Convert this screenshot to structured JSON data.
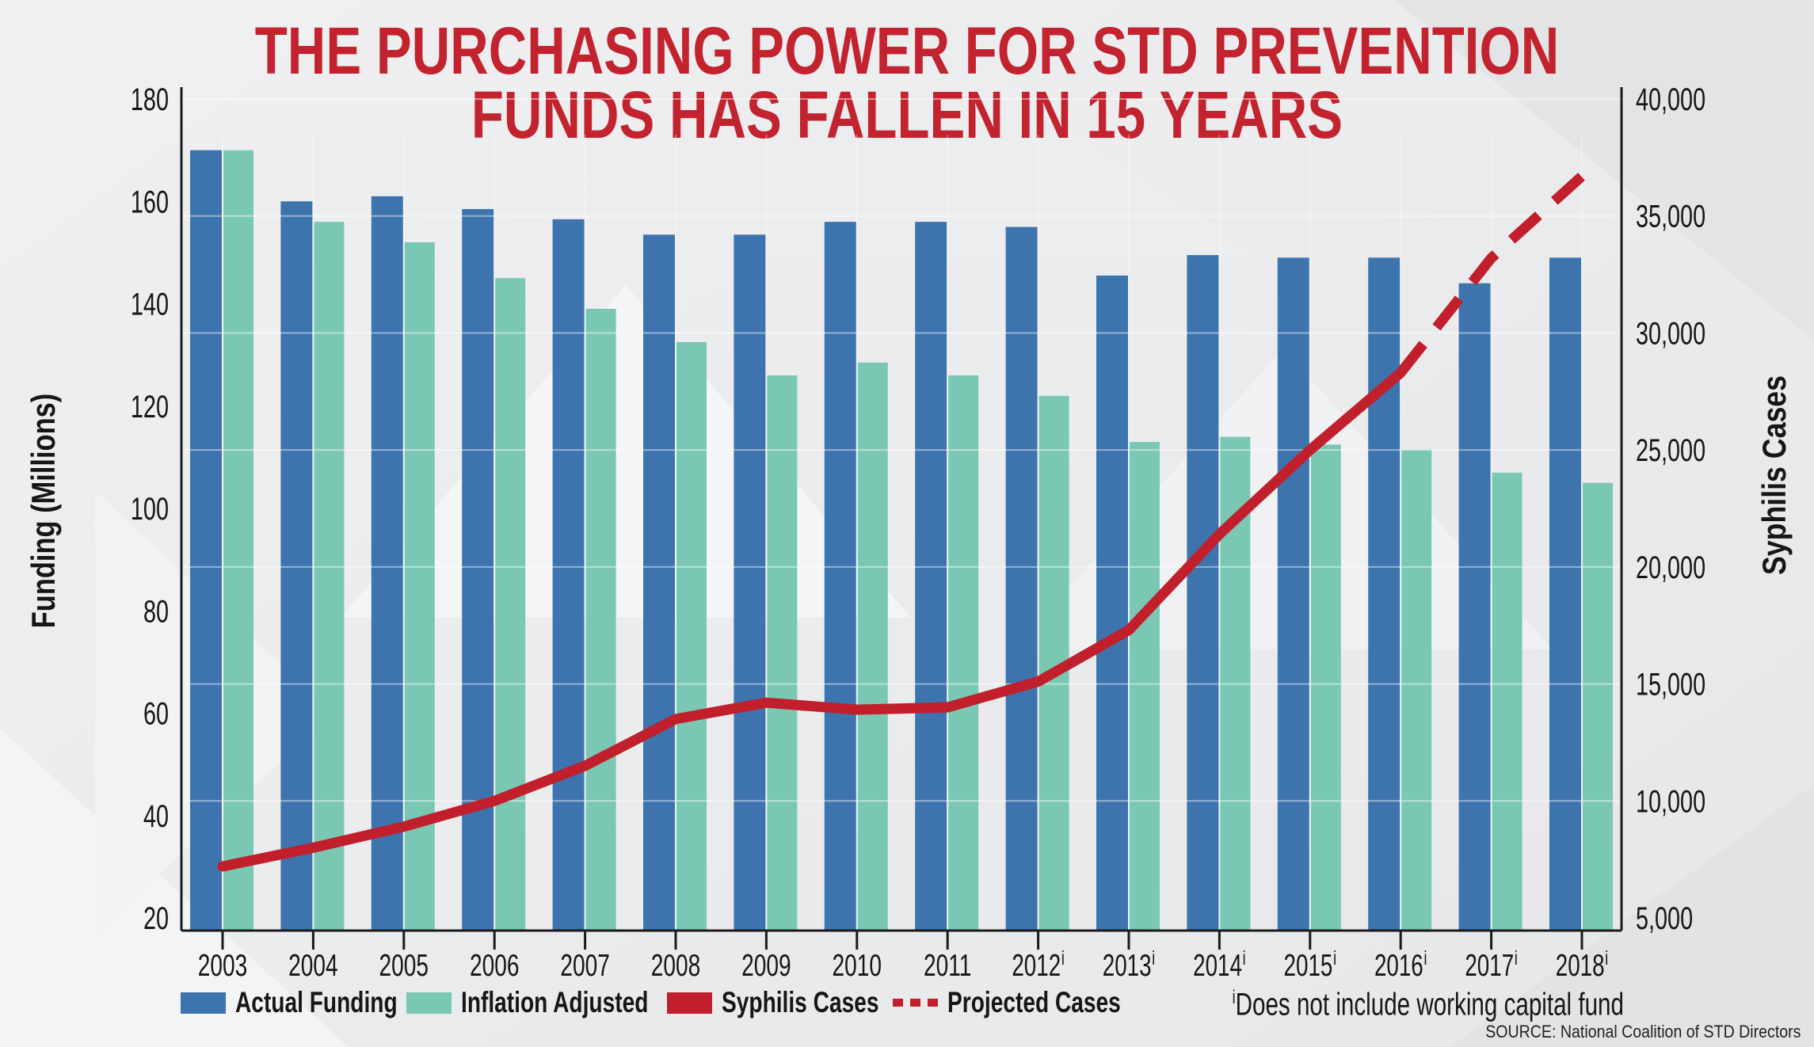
{
  "title": {
    "line1": "THE PURCHASING POWER FOR STD PREVENTION",
    "line2": "FUNDS HAS FALLEN IN 15 YEARS"
  },
  "left_axis_title": "Funding (Millions)",
  "right_axis_title": "Syphilis Cases",
  "legend": {
    "actual": "Actual Funding",
    "inflation": "Inflation Adjusted",
    "syphilis": "Syphilis Cases",
    "projected": "Projected Cases"
  },
  "note": {
    "sup": "i",
    "text": "Does not include working capital fund"
  },
  "source": "SOURCE: National Coalition of STD Directors",
  "colors": {
    "title_red": "#c2232e",
    "bar_blue": "#3d74ae",
    "bar_teal": "#7ac8b4",
    "line_red": "#c11f2b",
    "axis_black": "#1a1a1a",
    "gridline_white": "#ffffff"
  },
  "chart_data": {
    "type": "bar+line",
    "categories": [
      "2003",
      "2004",
      "2005",
      "2006",
      "2007",
      "2008",
      "2009",
      "2010",
      "2011",
      "2012",
      "2013",
      "2014",
      "2015",
      "2016",
      "2017",
      "2018"
    ],
    "note_flag_years": [
      "2012",
      "2013",
      "2014",
      "2015",
      "2016",
      "2017",
      "2018"
    ],
    "series": [
      {
        "name": "Actual Funding",
        "type": "bar",
        "axis": "left",
        "values": [
          170,
          160,
          161,
          158.5,
          156.5,
          153.5,
          153.5,
          156,
          156,
          155,
          145.5,
          149.5,
          149,
          149,
          144,
          149
        ]
      },
      {
        "name": "Inflation Adjusted",
        "type": "bar",
        "axis": "left",
        "values": [
          170,
          156,
          152,
          145,
          139,
          132.5,
          126,
          128.5,
          126,
          122,
          113,
          114,
          112.5,
          111.5,
          107,
          105
        ]
      },
      {
        "name": "Syphilis Cases",
        "type": "line",
        "axis": "right",
        "years": [
          "2003",
          "2004",
          "2005",
          "2006",
          "2007",
          "2008",
          "2009",
          "2010",
          "2011",
          "2012",
          "2013",
          "2014",
          "2015",
          "2016"
        ],
        "values": [
          7200,
          8000,
          8900,
          10000,
          11500,
          13500,
          14200,
          13900,
          14000,
          15100,
          17300,
          21400,
          25000,
          28300
        ]
      },
      {
        "name": "Projected Cases",
        "type": "line-dashed",
        "axis": "right",
        "years": [
          "2016",
          "2017",
          "2018"
        ],
        "values": [
          28300,
          33200,
          36700
        ]
      }
    ],
    "left_axis": {
      "label": "Funding (Millions)",
      "min": 20,
      "max": 180,
      "tick_step": 20,
      "ticks": [
        180,
        160,
        140,
        120,
        100,
        80,
        60,
        40,
        20
      ]
    },
    "right_axis": {
      "label": "Syphilis Cases",
      "min": 5000,
      "max": 40000,
      "tick_step": 5000,
      "ticks": [
        40000,
        35000,
        30000,
        25000,
        20000,
        15000,
        10000,
        5000
      ]
    },
    "grid": "horizontal white lines at right-axis steps",
    "legend_position": "bottom"
  }
}
